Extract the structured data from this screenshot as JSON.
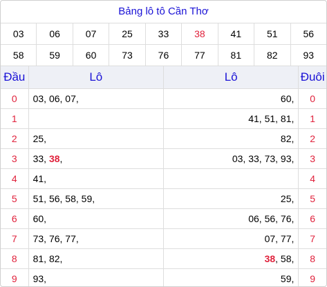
{
  "title": "Bảng lô tô Cần Thơ",
  "numbers_row1": [
    "03",
    "06",
    "07",
    "25",
    "33",
    "38",
    "41",
    "51",
    "56"
  ],
  "numbers_row2": [
    "58",
    "59",
    "60",
    "73",
    "76",
    "77",
    "81",
    "82",
    "93"
  ],
  "highlight": "38",
  "headers": {
    "dau": "Đầu",
    "lo_left": "Lô",
    "lo_right": "Lô",
    "duoi": "Đuôi"
  },
  "rows": [
    {
      "dau": "0",
      "left": [
        "03",
        "06",
        "07"
      ],
      "right": [
        "60"
      ],
      "duoi": "0"
    },
    {
      "dau": "1",
      "left": [],
      "right": [
        "41",
        "51",
        "81"
      ],
      "duoi": "1"
    },
    {
      "dau": "2",
      "left": [
        "25"
      ],
      "right": [
        "82"
      ],
      "duoi": "2"
    },
    {
      "dau": "3",
      "left": [
        "33",
        "38"
      ],
      "right": [
        "03",
        "33",
        "73",
        "93"
      ],
      "duoi": "3"
    },
    {
      "dau": "4",
      "left": [
        "41"
      ],
      "right": [],
      "duoi": "4"
    },
    {
      "dau": "5",
      "left": [
        "51",
        "56",
        "58",
        "59"
      ],
      "right": [
        "25"
      ],
      "duoi": "5"
    },
    {
      "dau": "6",
      "left": [
        "60"
      ],
      "right": [
        "06",
        "56",
        "76"
      ],
      "duoi": "6"
    },
    {
      "dau": "7",
      "left": [
        "73",
        "76",
        "77"
      ],
      "right": [
        "07",
        "77"
      ],
      "duoi": "7"
    },
    {
      "dau": "8",
      "left": [
        "81",
        "82"
      ],
      "right": [
        "38",
        "58"
      ],
      "duoi": "8"
    },
    {
      "dau": "9",
      "left": [
        "93"
      ],
      "right": [
        "59"
      ],
      "duoi": "9"
    }
  ],
  "colors": {
    "title": "#1a12d6",
    "accent_red": "#e0213b",
    "header_bg": "#eef0f6"
  }
}
